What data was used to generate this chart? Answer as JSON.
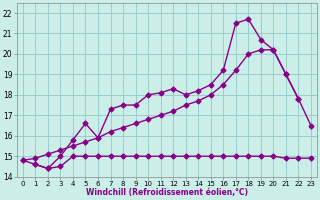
{
  "title": "",
  "xlabel": "Windchill (Refroidissement éolien,°C)",
  "ylabel": "",
  "background_color": "#cceee8",
  "line_color": "#880088",
  "xlim": [
    -0.5,
    23.5
  ],
  "ylim": [
    14,
    22.5
  ],
  "yticks": [
    14,
    15,
    16,
    17,
    18,
    19,
    20,
    21,
    22
  ],
  "xticks": [
    0,
    1,
    2,
    3,
    4,
    5,
    6,
    7,
    8,
    9,
    10,
    11,
    12,
    13,
    14,
    15,
    16,
    17,
    18,
    19,
    20,
    21,
    22,
    23
  ],
  "line1_x": [
    0,
    1,
    2,
    3,
    4,
    5,
    6,
    7,
    8,
    9,
    10,
    11,
    12,
    13,
    14,
    15,
    16,
    17,
    18,
    19,
    20,
    21,
    22,
    23
  ],
  "line1_y": [
    14.8,
    14.6,
    14.4,
    14.5,
    15.0,
    15.0,
    15.0,
    15.0,
    15.0,
    15.0,
    15.0,
    15.0,
    15.0,
    15.0,
    15.0,
    15.0,
    15.0,
    15.0,
    15.0,
    15.0,
    15.0,
    14.9,
    14.9,
    14.9
  ],
  "line2_x": [
    1,
    2,
    3,
    4,
    5,
    6,
    7,
    8,
    9,
    10,
    11,
    12,
    13,
    14,
    15,
    16,
    17,
    18,
    19,
    20,
    21,
    22
  ],
  "line2_y": [
    14.6,
    14.4,
    15.0,
    15.8,
    16.6,
    15.9,
    17.3,
    17.5,
    17.5,
    18.0,
    18.1,
    18.3,
    18.0,
    18.2,
    18.5,
    19.2,
    21.5,
    21.7,
    20.7,
    20.2,
    19.0,
    17.8
  ],
  "line3_x": [
    0,
    1,
    2,
    3,
    4,
    5,
    6,
    7,
    8,
    9,
    10,
    11,
    12,
    13,
    14,
    15,
    16,
    17,
    18,
    19,
    20,
    21,
    22,
    23
  ],
  "line3_y": [
    14.8,
    14.9,
    15.1,
    15.3,
    15.5,
    15.7,
    15.9,
    16.2,
    16.4,
    16.6,
    16.8,
    17.0,
    17.2,
    17.5,
    17.7,
    18.0,
    18.5,
    19.2,
    20.0,
    20.2,
    20.2,
    19.0,
    17.8,
    16.5
  ],
  "grid_color": "#99cccc",
  "marker": "D",
  "markersize": 2.5,
  "linewidth": 1.0
}
